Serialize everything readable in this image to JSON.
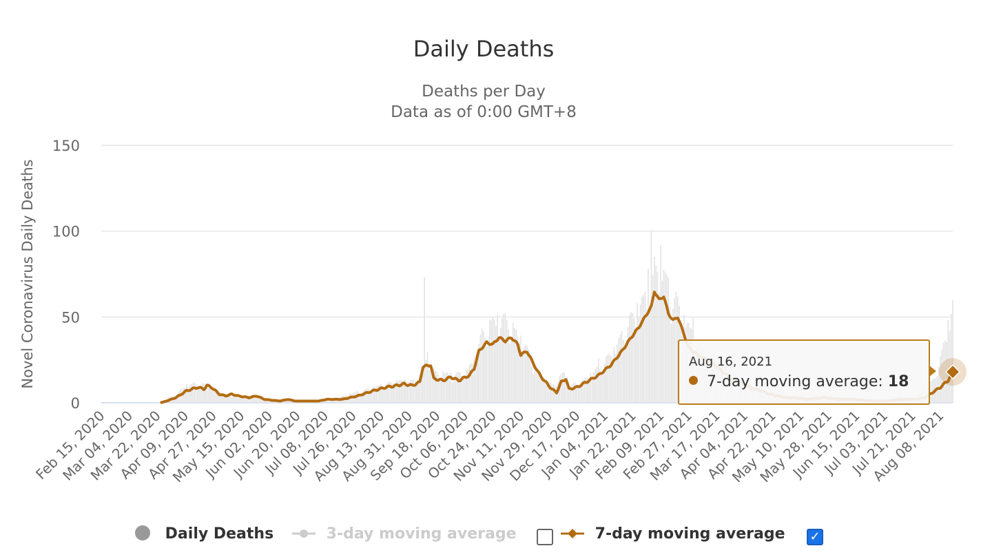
{
  "chart_data": {
    "type": "bar",
    "title": "Daily Deaths",
    "subtitle_lines": [
      "Deaths per Day",
      "Data as of 0:00 GMT+8"
    ],
    "ylabel": "Novel Coronavirus Daily Deaths",
    "ylim": [
      0,
      150
    ],
    "yticks": [
      0,
      50,
      100,
      150
    ],
    "grid": true,
    "x_start": "2020-02-15",
    "x_end": "2021-08-16",
    "xtick_labels": [
      "Feb 15, 2020",
      "Mar 04, 2020",
      "Mar 22, 2020",
      "Apr 09, 2020",
      "Apr 27, 2020",
      "May 15, 2020",
      "Jun 02, 2020",
      "Jun 20, 2020",
      "Jul 08, 2020",
      "Jul 26, 2020",
      "Aug 13, 2020",
      "Aug 31, 2020",
      "Sep 18, 2020",
      "Oct 06, 2020",
      "Oct 24, 2020",
      "Nov 11, 2020",
      "Nov 29, 2020",
      "Dec 17, 2020",
      "Jan 04, 2021",
      "Jan 22, 2021",
      "Feb 09, 2021",
      "Feb 27, 2021",
      "Mar 17, 2021",
      "Apr 04, 2021",
      "Apr 22, 2021",
      "May 10, 2021",
      "May 28, 2021",
      "Jun 15, 2021",
      "Jul 03, 2021",
      "Jul 21, 2021",
      "Aug 08, 2021"
    ],
    "series": [
      {
        "name": "Daily Deaths",
        "type": "bar",
        "color": "#e3e3e3",
        "anchors": [
          [
            0,
            0
          ],
          [
            38,
            0
          ],
          [
            40,
            1
          ],
          [
            48,
            4
          ],
          [
            55,
            8
          ],
          [
            62,
            9
          ],
          [
            68,
            8
          ],
          [
            75,
            5
          ],
          [
            85,
            3
          ],
          [
            95,
            3
          ],
          [
            105,
            2
          ],
          [
            120,
            1
          ],
          [
            140,
            1
          ],
          [
            150,
            2
          ],
          [
            160,
            4
          ],
          [
            170,
            6
          ],
          [
            180,
            8
          ],
          [
            190,
            10
          ],
          [
            200,
            10
          ],
          [
            205,
            12
          ],
          [
            210,
            22
          ],
          [
            215,
            14
          ],
          [
            225,
            13
          ],
          [
            235,
            14
          ],
          [
            240,
            20
          ],
          [
            245,
            32
          ],
          [
            250,
            36
          ],
          [
            255,
            38
          ],
          [
            262,
            39
          ],
          [
            268,
            30
          ],
          [
            272,
            28
          ],
          [
            278,
            18
          ],
          [
            283,
            12
          ],
          [
            290,
            8
          ],
          [
            298,
            14
          ],
          [
            302,
            8
          ],
          [
            310,
            10
          ],
          [
            320,
            16
          ],
          [
            330,
            24
          ],
          [
            340,
            38
          ],
          [
            350,
            48
          ],
          [
            355,
            55
          ],
          [
            358,
            65
          ],
          [
            362,
            60
          ],
          [
            366,
            52
          ],
          [
            370,
            48
          ],
          [
            375,
            38
          ],
          [
            380,
            32
          ],
          [
            385,
            26
          ],
          [
            390,
            22
          ],
          [
            400,
            18
          ],
          [
            410,
            12
          ],
          [
            420,
            9
          ],
          [
            430,
            6
          ],
          [
            440,
            4
          ],
          [
            455,
            3
          ],
          [
            470,
            3
          ],
          [
            490,
            2
          ],
          [
            510,
            2
          ],
          [
            525,
            3
          ],
          [
            535,
            10
          ],
          [
            540,
            20
          ],
          [
            548,
            45
          ]
        ],
        "spikes": [
          [
            208,
            73
          ],
          [
            320,
            26
          ],
          [
            352,
            78
          ],
          [
            354,
            100
          ],
          [
            356,
            85
          ],
          [
            360,
            92
          ],
          [
            363,
            76
          ],
          [
            381,
            50
          ]
        ]
      },
      {
        "name": "3-day moving average",
        "type": "line",
        "color": "#cccccc",
        "visible": false
      },
      {
        "name": "7-day moving average",
        "type": "line",
        "color": "#b36b12",
        "visible": true,
        "anchors": [
          [
            38,
            0
          ],
          [
            42,
            1
          ],
          [
            48,
            3
          ],
          [
            55,
            7
          ],
          [
            62,
            9
          ],
          [
            66,
            8
          ],
          [
            68,
            10
          ],
          [
            71,
            9
          ],
          [
            76,
            5
          ],
          [
            80,
            4
          ],
          [
            84,
            5
          ],
          [
            88,
            4
          ],
          [
            95,
            3
          ],
          [
            100,
            4
          ],
          [
            105,
            2
          ],
          [
            115,
            1
          ],
          [
            120,
            2
          ],
          [
            125,
            1
          ],
          [
            140,
            1
          ],
          [
            145,
            2
          ],
          [
            155,
            2
          ],
          [
            165,
            4
          ],
          [
            175,
            7
          ],
          [
            183,
            9
          ],
          [
            190,
            10
          ],
          [
            195,
            11
          ],
          [
            200,
            10
          ],
          [
            205,
            12
          ],
          [
            207,
            21
          ],
          [
            212,
            22
          ],
          [
            214,
            14
          ],
          [
            220,
            13
          ],
          [
            225,
            15
          ],
          [
            230,
            13
          ],
          [
            237,
            16
          ],
          [
            240,
            20
          ],
          [
            243,
            30
          ],
          [
            248,
            35
          ],
          [
            252,
            34
          ],
          [
            256,
            38
          ],
          [
            260,
            36
          ],
          [
            264,
            38
          ],
          [
            268,
            34
          ],
          [
            270,
            28
          ],
          [
            274,
            30
          ],
          [
            278,
            23
          ],
          [
            281,
            18
          ],
          [
            285,
            13
          ],
          [
            290,
            8
          ],
          [
            293,
            6
          ],
          [
            296,
            12
          ],
          [
            299,
            14
          ],
          [
            301,
            8
          ],
          [
            306,
            9
          ],
          [
            312,
            12
          ],
          [
            320,
            16
          ],
          [
            328,
            22
          ],
          [
            335,
            30
          ],
          [
            341,
            38
          ],
          [
            346,
            44
          ],
          [
            350,
            50
          ],
          [
            354,
            56
          ],
          [
            356,
            65
          ],
          [
            359,
            60
          ],
          [
            362,
            62
          ],
          [
            365,
            52
          ],
          [
            368,
            48
          ],
          [
            371,
            50
          ],
          [
            375,
            40
          ],
          [
            378,
            32
          ],
          [
            381,
            30
          ],
          [
            385,
            27
          ],
          [
            390,
            25
          ],
          [
            395,
            22
          ],
          [
            400,
            18
          ],
          [
            405,
            14
          ],
          [
            410,
            12
          ],
          [
            415,
            10
          ],
          [
            420,
            8
          ],
          [
            425,
            7
          ],
          [
            430,
            5
          ],
          [
            435,
            4
          ],
          [
            440,
            3
          ],
          [
            445,
            3
          ],
          [
            455,
            2
          ],
          [
            465,
            3
          ],
          [
            475,
            2
          ],
          [
            485,
            2
          ],
          [
            495,
            1
          ],
          [
            505,
            1
          ],
          [
            515,
            2
          ],
          [
            525,
            2
          ],
          [
            530,
            3
          ],
          [
            535,
            6
          ],
          [
            540,
            9
          ],
          [
            545,
            13
          ],
          [
            548,
            18
          ]
        ]
      }
    ],
    "tooltip": {
      "date": "Aug 16, 2021",
      "series": "7-day moving average:",
      "value": "18"
    },
    "legend_position": "bottom-center"
  },
  "legend": {
    "daily": "Daily Deaths",
    "avg3": "3-day moving average",
    "avg7": "7-day moving average",
    "avg3_checked": false,
    "avg7_checked": true,
    "check_glyph": "✓"
  },
  "colors": {
    "accent": "#b36b12",
    "bar": "#e3e3e3",
    "grid": "#e6e6e6",
    "checkbox_on": "#1a73e8"
  }
}
